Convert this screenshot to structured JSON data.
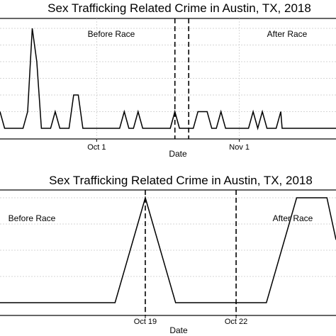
{
  "chart_data": [
    {
      "type": "line",
      "title": "Sex Trafficking Related Crime in Austin, TX, 2018",
      "xlabel": "Date",
      "ylabel": "",
      "x_tick_labels": [
        "Oct 1",
        "Nov 1"
      ],
      "x_ticks_day_of_year": [
        274,
        305
      ],
      "xlim_day_of_year": [
        253,
        326
      ],
      "ylim": [
        0,
        6.5
      ],
      "grid": true,
      "annotations": [
        "Before Race",
        "After Race"
      ],
      "race_markers_day_of_year": [
        291,
        294
      ],
      "series": [
        {
          "x_day_of_year": [
            253,
            254,
            255,
            256,
            257,
            258,
            259,
            260,
            261,
            262,
            263,
            264,
            265,
            266,
            267,
            268,
            269,
            270,
            271,
            272,
            273,
            274,
            275,
            276,
            277,
            278,
            279,
            280,
            281,
            282,
            283,
            284,
            285,
            286,
            287,
            288,
            289,
            290,
            291,
            292,
            293,
            294,
            295,
            296,
            297,
            298,
            299,
            300,
            301,
            302,
            303,
            304,
            305,
            306,
            307,
            308,
            309,
            310,
            311,
            312,
            313,
            314,
            314.3,
            315,
            316,
            317,
            318,
            319,
            320,
            321,
            322,
            323,
            324,
            325,
            326
          ],
          "values": [
            1,
            0,
            0,
            0,
            0,
            0,
            1,
            6,
            4,
            0,
            0,
            0,
            1,
            0,
            0,
            0,
            2,
            2,
            0,
            0,
            0,
            0,
            0,
            0,
            0,
            0,
            0,
            1,
            0,
            0,
            1,
            0,
            0,
            0,
            0,
            0,
            0,
            0,
            1,
            0,
            0,
            0,
            0,
            1,
            1,
            1,
            0,
            0,
            1,
            0,
            0,
            0,
            0,
            0,
            0,
            1,
            0,
            1,
            0,
            0,
            0,
            1,
            0,
            0,
            0,
            0,
            0,
            0,
            0,
            0,
            0,
            0,
            0,
            0,
            0
          ]
        }
      ]
    },
    {
      "type": "line",
      "title": "Sex Trafficking Related Crime in Austin, TX, 2018",
      "xlabel": "Date",
      "ylabel": "",
      "x_tick_labels": [
        "Oct 19",
        "Oct 22"
      ],
      "x_ticks_day_of_year": [
        292,
        295
      ],
      "xlim_day_of_year": [
        287.2,
        298.3
      ],
      "ylim": [
        0,
        1.1
      ],
      "grid": true,
      "annotations": [
        "Before Race",
        "After Race"
      ],
      "race_markers_day_of_year": [
        292,
        295
      ],
      "series": [
        {
          "x_day_of_year": [
            287.2,
            290,
            291,
            292,
            293,
            294,
            295,
            296,
            297,
            298,
            298.3
          ],
          "values": [
            0,
            0,
            0,
            1,
            0,
            0,
            0,
            0,
            1,
            1,
            0.6
          ]
        }
      ]
    }
  ]
}
